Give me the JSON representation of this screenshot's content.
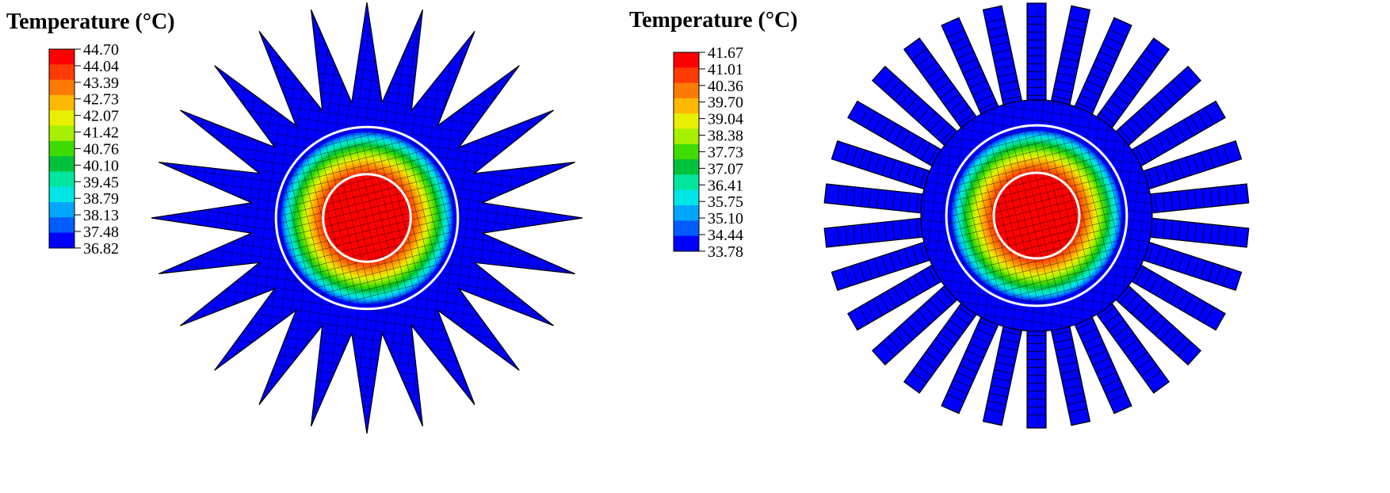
{
  "panels": [
    {
      "id": "left",
      "legend_title": "Temperature  (°C)",
      "legend_values": [
        "44.70",
        "44.04",
        "43.39",
        "42.73",
        "42.07",
        "41.42",
        "40.76",
        "40.10",
        "39.45",
        "38.79",
        "38.13",
        "37.48",
        "36.82"
      ],
      "fin_count": 24,
      "fin_shape": "triangular spikes",
      "min_temp": 36.82,
      "max_temp": 44.7
    },
    {
      "id": "right",
      "legend_title": "Temperature  (°C)",
      "legend_values": [
        "41.67",
        "41.01",
        "40.36",
        "39.70",
        "39.04",
        "38.38",
        "37.73",
        "37.07",
        "36.41",
        "35.75",
        "35.10",
        "34.44",
        "33.78"
      ],
      "fin_count": 30,
      "fin_shape": "rectangular plates",
      "min_temp": 33.78,
      "max_temp": 41.67
    }
  ],
  "colors": {
    "scale": [
      "#ff0000",
      "#ff3a00",
      "#ff7a00",
      "#ffb800",
      "#e8f000",
      "#a6f000",
      "#3fdc00",
      "#00c23a",
      "#00e6a0",
      "#00e6e6",
      "#00a6ff",
      "#005cff",
      "#0000ff"
    ],
    "mesh_line": "#000000",
    "interface_ring": "#ffffff"
  }
}
